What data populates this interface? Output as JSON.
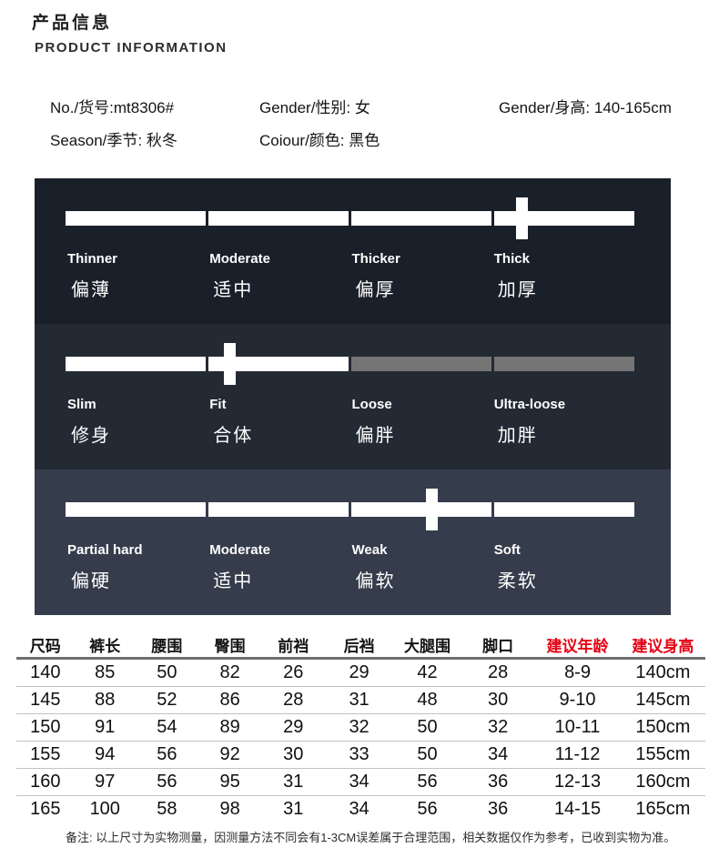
{
  "header": {
    "title_zh": "产品信息",
    "title_en": "PRODUCT INFORMATION"
  },
  "product_info": {
    "items": [
      {
        "label": "No./货号:mt8306#"
      },
      {
        "label": "Gender/性别: 女"
      },
      {
        "label": "Gender/身高: 140-165cm"
      },
      {
        "label": "Season/季节: 秋冬"
      },
      {
        "label": "Coiour/颜色: 黑色"
      }
    ]
  },
  "colors": {
    "segment_filled": "#ffffff",
    "segment_empty": "#757575",
    "header_red": "#e60012"
  },
  "panels": [
    {
      "bg": "#1a202a",
      "marker_pct": 80.2,
      "segments": [
        {
          "en": "Thinner",
          "zh": "偏薄",
          "filled": true
        },
        {
          "en": "Moderate",
          "zh": "适中",
          "filled": true
        },
        {
          "en": "Thicker",
          "zh": "偏厚",
          "filled": true
        },
        {
          "en": "Thick",
          "zh": "加厚",
          "filled": true
        }
      ]
    },
    {
      "bg": "#232a34",
      "marker_pct": 28.9,
      "segments": [
        {
          "en": "Slim",
          "zh": "修身",
          "filled": true
        },
        {
          "en": "Fit",
          "zh": "合体",
          "filled": true
        },
        {
          "en": "Loose",
          "zh": "偏胖",
          "filled": false
        },
        {
          "en": "Ultra-loose",
          "zh": "加胖",
          "filled": false
        }
      ]
    },
    {
      "bg": "#353c4c",
      "marker_pct": 64.4,
      "segments": [
        {
          "en": "Partial hard",
          "zh": "偏硬",
          "filled": true
        },
        {
          "en": "Moderate",
          "zh": "适中",
          "filled": true
        },
        {
          "en": "Weak",
          "zh": "偏软",
          "filled": true
        },
        {
          "en": "Soft",
          "zh": "柔软",
          "filled": true
        }
      ]
    }
  ],
  "size_table": {
    "columns": [
      {
        "label": "尺码",
        "red": false
      },
      {
        "label": "裤长",
        "red": false
      },
      {
        "label": "腰围",
        "red": false
      },
      {
        "label": "臀围",
        "red": false
      },
      {
        "label": "前裆",
        "red": false
      },
      {
        "label": "后裆",
        "red": false
      },
      {
        "label": "大腿围",
        "red": false
      },
      {
        "label": "脚口",
        "red": false
      },
      {
        "label": "建议年龄",
        "red": true
      },
      {
        "label": "建议身高",
        "red": true
      }
    ],
    "col_widths_pct": [
      8.4,
      8.9,
      9.1,
      9.2,
      9.2,
      9.9,
      9.9,
      10.6,
      12.5,
      12.3
    ],
    "rows": [
      [
        "140",
        "85",
        "50",
        "82",
        "26",
        "29",
        "42",
        "28",
        "8-9",
        "140cm"
      ],
      [
        "145",
        "88",
        "52",
        "86",
        "28",
        "31",
        "48",
        "30",
        "9-10",
        "145cm"
      ],
      [
        "150",
        "91",
        "54",
        "89",
        "29",
        "32",
        "50",
        "32",
        "10-11",
        "150cm"
      ],
      [
        "155",
        "94",
        "56",
        "92",
        "30",
        "33",
        "50",
        "34",
        "11-12",
        "155cm"
      ],
      [
        "160",
        "97",
        "56",
        "95",
        "31",
        "34",
        "56",
        "36",
        "12-13",
        "160cm"
      ],
      [
        "165",
        "100",
        "58",
        "98",
        "31",
        "34",
        "56",
        "36",
        "14-15",
        "165cm"
      ]
    ]
  },
  "note": "备注: 以上尺寸为实物测量，因测量方法不同会有1-3CM误差属于合理范围，相关数据仅作为参考，已收到实物为准。"
}
